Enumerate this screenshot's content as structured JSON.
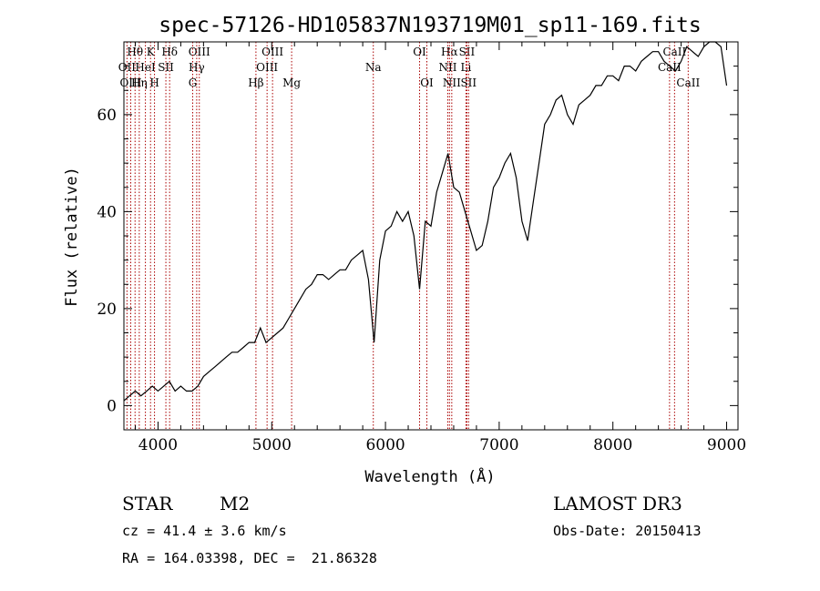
{
  "chart_data": {
    "type": "line",
    "title": "spec-57126-HD105837N193719M01_sp11-169.fits",
    "xlabel": "Wavelength (Å)",
    "ylabel": "Flux (relative)",
    "xlim": [
      3700,
      9100
    ],
    "ylim": [
      -5,
      75
    ],
    "x_ticks": [
      4000,
      5000,
      6000,
      7000,
      8000,
      9000
    ],
    "y_ticks": [
      0,
      20,
      40,
      60
    ],
    "line_color": "#000000",
    "marker_color": "#aa0000",
    "series": [
      {
        "name": "flux",
        "x": [
          3700,
          3750,
          3800,
          3850,
          3900,
          3950,
          4000,
          4050,
          4100,
          4150,
          4200,
          4250,
          4300,
          4350,
          4400,
          4450,
          4500,
          4550,
          4600,
          4650,
          4700,
          4750,
          4800,
          4850,
          4900,
          4950,
          5000,
          5050,
          5100,
          5150,
          5200,
          5250,
          5300,
          5350,
          5400,
          5450,
          5500,
          5550,
          5600,
          5650,
          5700,
          5750,
          5800,
          5850,
          5900,
          5950,
          6000,
          6050,
          6100,
          6150,
          6200,
          6250,
          6300,
          6350,
          6400,
          6450,
          6500,
          6550,
          6600,
          6650,
          6700,
          6750,
          6800,
          6850,
          6900,
          6950,
          7000,
          7050,
          7100,
          7150,
          7200,
          7250,
          7300,
          7350,
          7400,
          7450,
          7500,
          7550,
          7600,
          7650,
          7700,
          7750,
          7800,
          7850,
          7900,
          7950,
          8000,
          8050,
          8100,
          8150,
          8200,
          8250,
          8300,
          8350,
          8400,
          8450,
          8500,
          8550,
          8600,
          8650,
          8700,
          8750,
          8800,
          8850,
          8900,
          8950,
          9000
        ],
        "y": [
          1,
          2,
          3,
          2,
          3,
          4,
          3,
          4,
          5,
          3,
          4,
          3,
          3,
          4,
          6,
          7,
          8,
          9,
          10,
          11,
          11,
          12,
          13,
          13,
          16,
          13,
          14,
          15,
          16,
          18,
          20,
          22,
          24,
          25,
          27,
          27,
          26,
          27,
          28,
          28,
          30,
          31,
          32,
          26,
          13,
          30,
          36,
          37,
          40,
          38,
          40,
          35,
          24,
          38,
          37,
          44,
          48,
          52,
          45,
          44,
          40,
          36,
          32,
          33,
          38,
          45,
          47,
          50,
          52,
          47,
          38,
          34,
          42,
          50,
          58,
          60,
          63,
          64,
          60,
          58,
          62,
          63,
          64,
          66,
          66,
          68,
          68,
          67,
          70,
          70,
          69,
          71,
          72,
          73,
          73,
          71,
          70,
          69,
          71,
          74,
          73,
          72,
          74,
          75,
          75,
          74,
          66
        ]
      }
    ],
    "line_markers": [
      {
        "label": "Hθ",
        "wave": 3798,
        "row": 0
      },
      {
        "label": "OII",
        "wave": 3727,
        "row": 1
      },
      {
        "label": "OIII",
        "wave": 3760,
        "row": 2
      },
      {
        "label": "K",
        "wave": 3934,
        "row": 0
      },
      {
        "label": "HeI",
        "wave": 3889,
        "row": 1
      },
      {
        "label": "Hη",
        "wave": 3835,
        "row": 2
      },
      {
        "label": "SII",
        "wave": 4069,
        "row": 1
      },
      {
        "label": "H",
        "wave": 3969,
        "row": 2
      },
      {
        "label": "Hδ",
        "wave": 4102,
        "row": 0
      },
      {
        "label": "OIII",
        "wave": 4363,
        "row": 0
      },
      {
        "label": "Hγ",
        "wave": 4340,
        "row": 1
      },
      {
        "label": "G",
        "wave": 4305,
        "row": 2
      },
      {
        "label": "OIII",
        "wave": 5007,
        "row": 0
      },
      {
        "label": "OIII",
        "wave": 4959,
        "row": 1
      },
      {
        "label": "Hβ",
        "wave": 4861,
        "row": 2
      },
      {
        "label": "Mg",
        "wave": 5175,
        "row": 2
      },
      {
        "label": "Na",
        "wave": 5893,
        "row": 1
      },
      {
        "label": "OI",
        "wave": 6300,
        "row": 0
      },
      {
        "label": "OI",
        "wave": 6364,
        "row": 2
      },
      {
        "label": "Hα",
        "wave": 6563,
        "row": 0
      },
      {
        "label": "SII",
        "wave": 6716,
        "row": 0
      },
      {
        "label": "NII",
        "wave": 6548,
        "row": 1
      },
      {
        "label": "Li",
        "wave": 6708,
        "row": 1
      },
      {
        "label": "NII",
        "wave": 6583,
        "row": 2
      },
      {
        "label": "SII",
        "wave": 6731,
        "row": 2
      },
      {
        "label": "CaII",
        "wave": 8542,
        "row": 0
      },
      {
        "label": "CaII",
        "wave": 8498,
        "row": 1
      },
      {
        "label": "CaII",
        "wave": 8662,
        "row": 2
      }
    ]
  },
  "info": {
    "class": "STAR",
    "subclass": "M2",
    "survey": "LAMOST DR3",
    "cz": "cz = 41.4 ± 3.6 km/s",
    "obs_date": "Obs-Date: 20150413",
    "radec": "RA = 164.03398, DEC =  21.86328"
  }
}
